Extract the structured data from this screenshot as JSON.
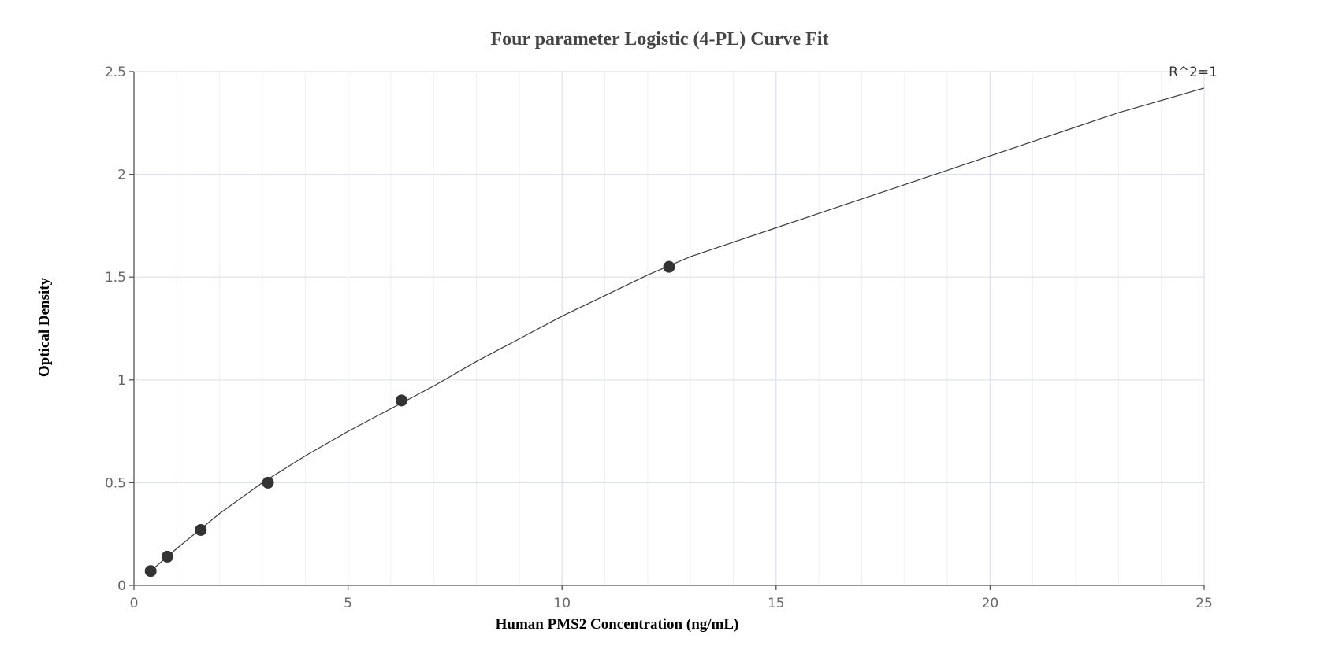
{
  "chart_data": {
    "type": "scatter",
    "title": "Four parameter Logistic (4-PL) Curve Fit",
    "xlabel": "Human PMS2 Concentration (ng/mL)",
    "ylabel": "Optical Density",
    "xlim": [
      0,
      25
    ],
    "ylim": [
      0,
      2.5
    ],
    "xticks": [
      0,
      5,
      10,
      15,
      20,
      25
    ],
    "yticks": [
      0,
      0.5,
      1,
      1.5,
      2,
      2.5
    ],
    "xtick_labels": [
      "0",
      "5",
      "10",
      "15",
      "20",
      "25"
    ],
    "ytick_labels": [
      "0",
      "0.5",
      "1",
      "1.5",
      "2",
      "2.5"
    ],
    "grid": true,
    "annotation": "R^2=1",
    "series": [
      {
        "type": "scatter",
        "x": [
          0.39,
          0.78,
          1.56,
          3.13,
          6.25,
          12.5
        ],
        "y": [
          0.07,
          0.14,
          0.27,
          0.5,
          0.9,
          1.55
        ]
      },
      {
        "type": "line",
        "x": [
          0.39,
          1,
          2,
          3,
          4,
          5,
          6,
          7,
          8,
          9,
          10,
          11,
          12,
          13,
          14,
          15,
          16,
          17,
          18,
          19,
          20,
          21,
          22,
          23,
          24,
          25
        ],
        "y": [
          0.07,
          0.18,
          0.35,
          0.5,
          0.63,
          0.75,
          0.86,
          0.97,
          1.09,
          1.2,
          1.31,
          1.41,
          1.51,
          1.6,
          1.67,
          1.74,
          1.81,
          1.88,
          1.95,
          2.02,
          2.09,
          2.16,
          2.23,
          2.3,
          2.36,
          2.42
        ]
      }
    ]
  }
}
